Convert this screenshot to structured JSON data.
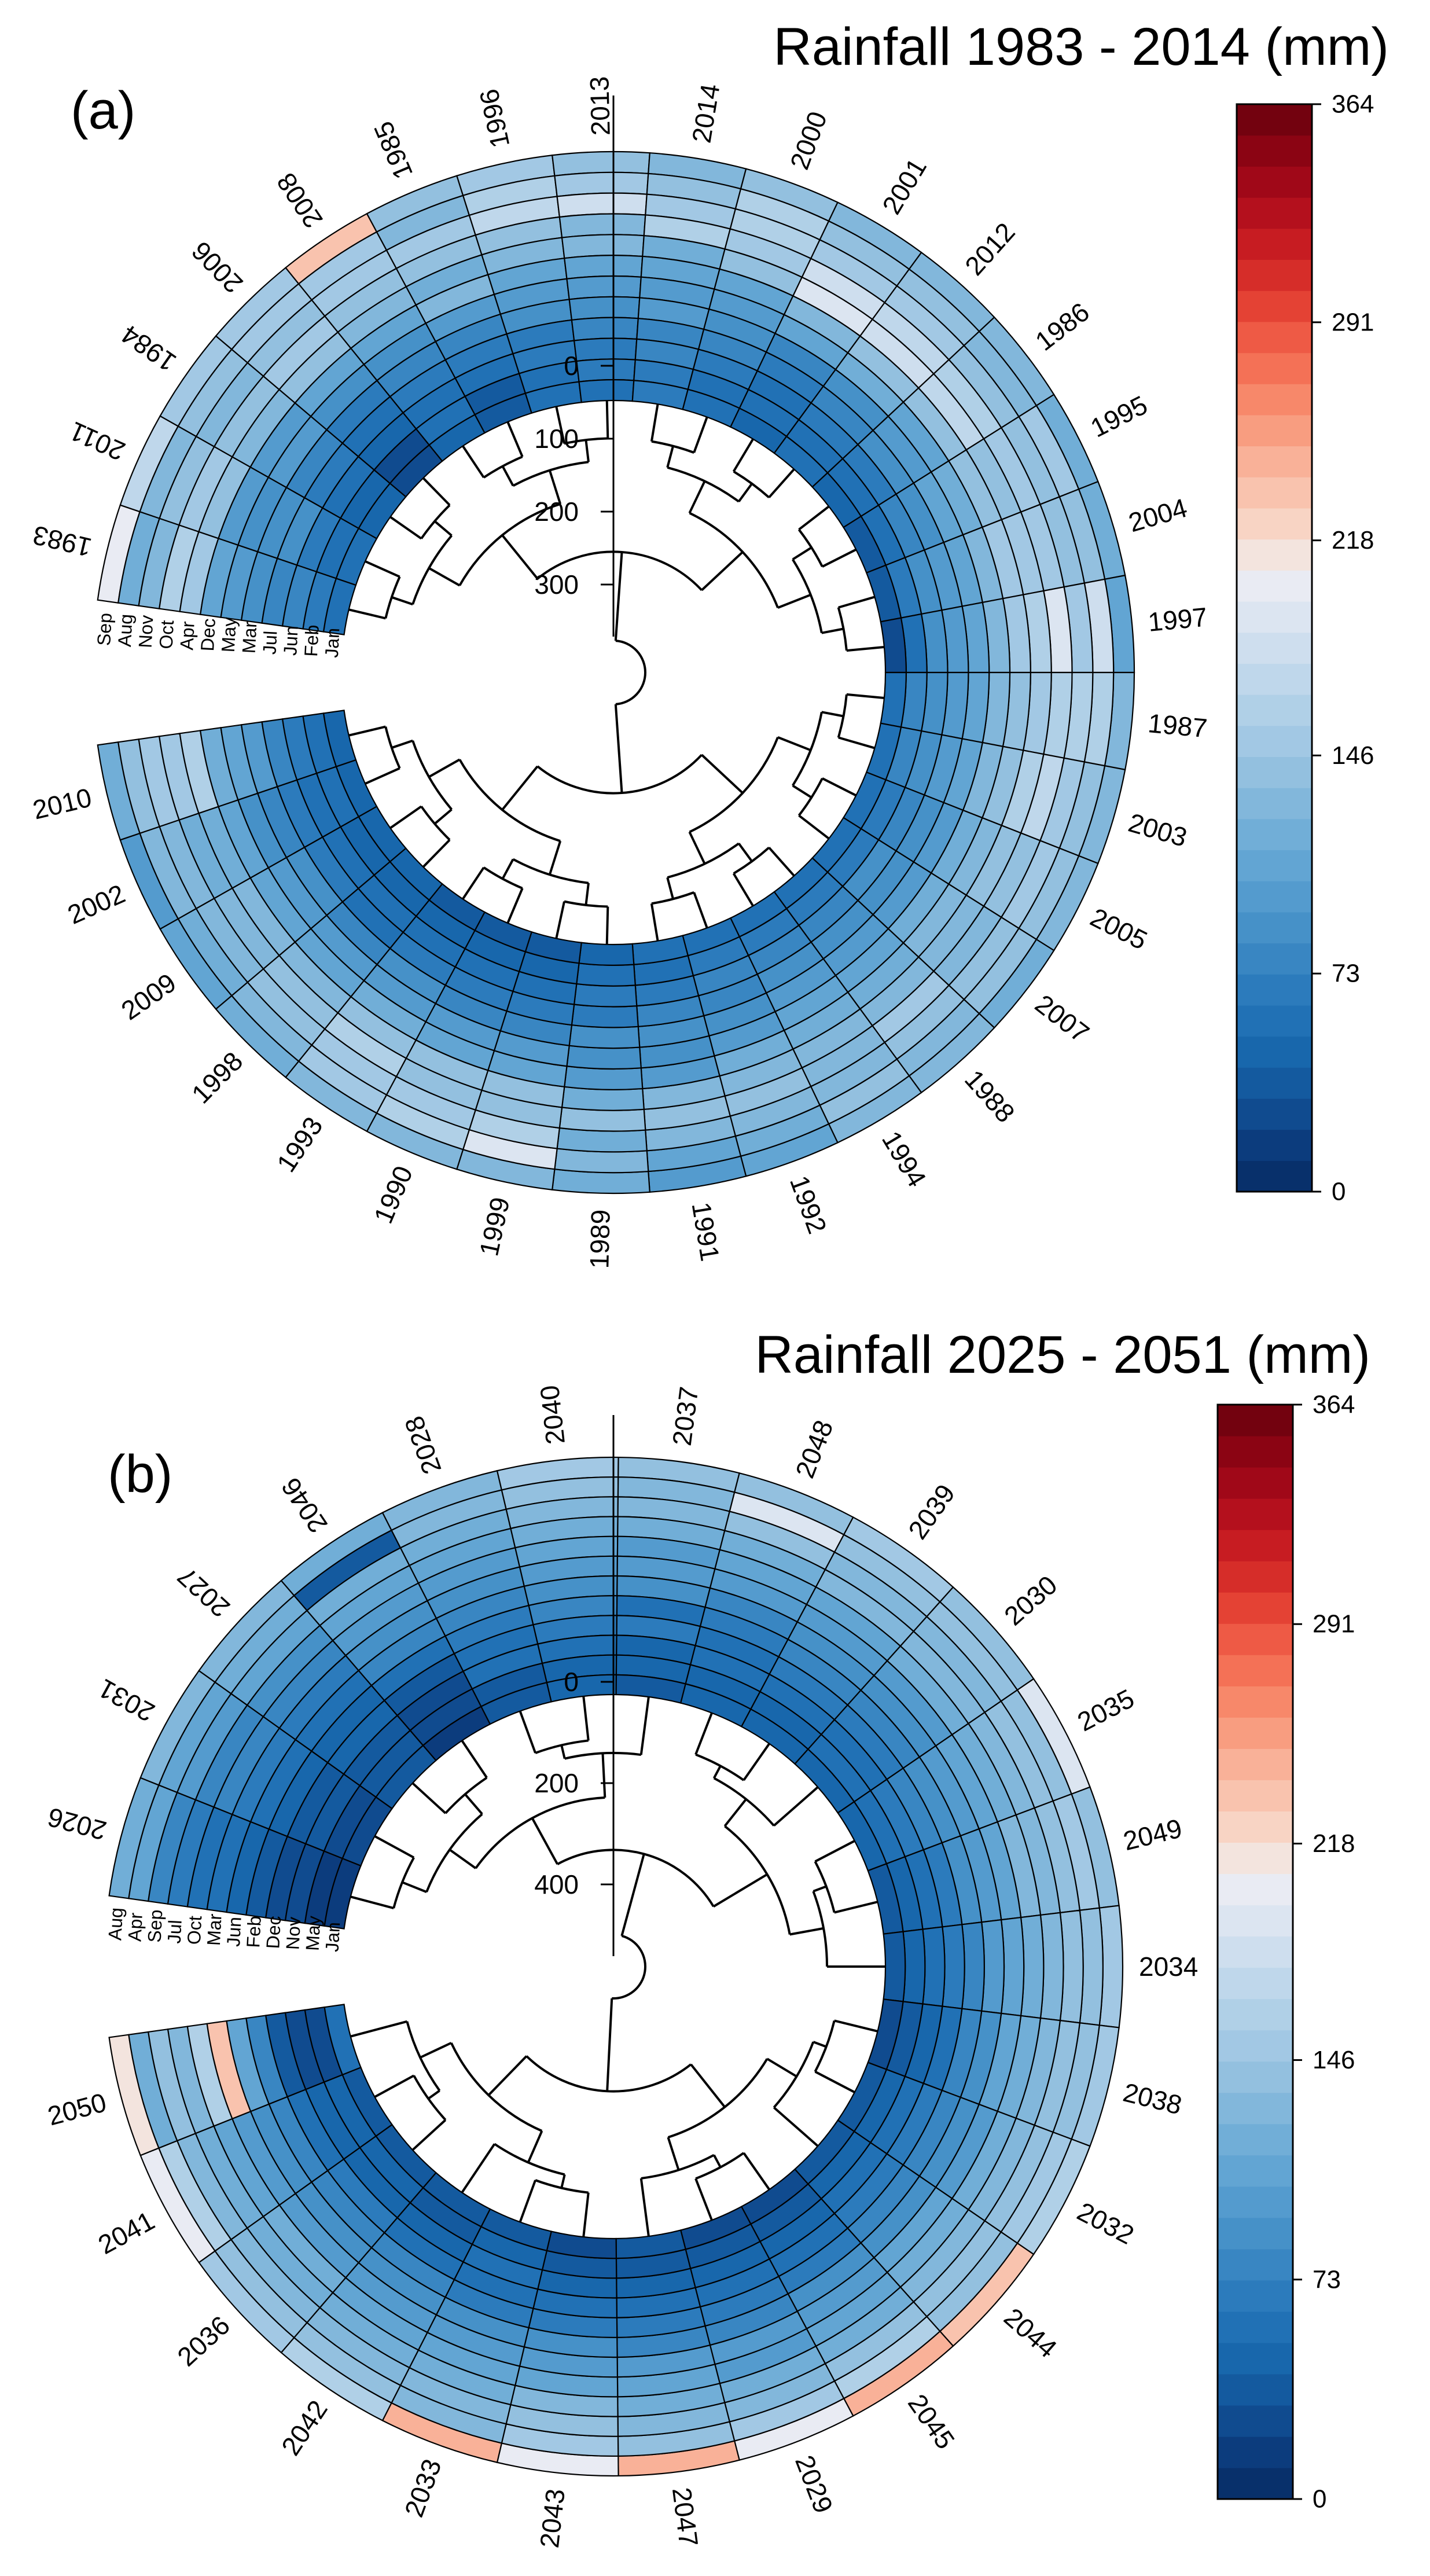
{
  "chart_data": [
    {
      "panel": "(a)",
      "type": "heatmap",
      "title": "Rainfall 1983 - 2014 (mm)",
      "style": "circular heatmap with hierarchical clustering dendrogram",
      "months": [
        "Sep",
        "Aug",
        "Nov",
        "Oct",
        "Apr",
        "Dec",
        "May",
        "Mar",
        "Jul",
        "Jun",
        "Feb",
        "Jan"
      ],
      "years": [
        "1983",
        "2011",
        "1984",
        "2006",
        "2008",
        "1985",
        "1996",
        "2013",
        "2014",
        "2000",
        "2001",
        "2012",
        "1986",
        "1995",
        "2004",
        "1997",
        "1987",
        "2003",
        "2005",
        "2007",
        "1988",
        "1994",
        "1992",
        "1991",
        "1989",
        "1999",
        "1990",
        "1993",
        "1998",
        "2009",
        "2002",
        "2010"
      ],
      "values": [
        [
          200,
          120,
          130,
          160,
          150,
          110,
          100,
          90,
          80,
          75,
          70,
          60
        ],
        [
          170,
          130,
          140,
          150,
          140,
          100,
          90,
          85,
          85,
          70,
          60,
          55
        ],
        [
          150,
          140,
          135,
          145,
          130,
          95,
          95,
          80,
          70,
          60,
          50,
          45
        ],
        [
          150,
          150,
          140,
          150,
          140,
          110,
          90,
          70,
          60,
          50,
          30,
          25
        ],
        [
          230,
          150,
          150,
          140,
          135,
          110,
          90,
          80,
          70,
          60,
          55,
          50
        ],
        [
          140,
          135,
          150,
          140,
          120,
          130,
          100,
          80,
          70,
          60,
          40,
          35
        ],
        [
          155,
          160,
          175,
          140,
          135,
          110,
          95,
          90,
          70,
          65,
          60,
          55
        ],
        [
          140,
          150,
          180,
          135,
          130,
          105,
          100,
          85,
          80,
          70,
          65,
          60
        ],
        [
          125,
          140,
          150,
          160,
          120,
          110,
          100,
          95,
          80,
          75,
          70,
          65
        ],
        [
          140,
          160,
          165,
          150,
          140,
          110,
          95,
          90,
          75,
          65,
          60,
          55
        ],
        [
          135,
          140,
          150,
          185,
          190,
          130,
          110,
          80,
          70,
          60,
          55,
          50
        ],
        [
          130,
          140,
          150,
          175,
          185,
          140,
          120,
          90,
          80,
          70,
          60,
          55
        ],
        [
          130,
          135,
          145,
          160,
          175,
          140,
          110,
          100,
          85,
          70,
          55,
          45
        ],
        [
          120,
          150,
          145,
          150,
          140,
          140,
          115,
          105,
          90,
          80,
          60,
          35
        ],
        [
          115,
          140,
          140,
          150,
          150,
          150,
          125,
          105,
          95,
          90,
          70,
          40
        ],
        [
          110,
          185,
          150,
          190,
          160,
          150,
          125,
          105,
          95,
          85,
          60,
          30
        ],
        [
          130,
          160,
          160,
          160,
          150,
          140,
          130,
          110,
          95,
          90,
          75,
          55
        ],
        [
          125,
          145,
          150,
          175,
          165,
          140,
          125,
          110,
          100,
          85,
          75,
          60
        ],
        [
          125,
          140,
          155,
          140,
          140,
          130,
          120,
          100,
          90,
          80,
          70,
          60
        ],
        [
          120,
          140,
          140,
          135,
          130,
          125,
          120,
          100,
          90,
          85,
          70,
          60
        ],
        [
          130,
          135,
          145,
          150,
          130,
          120,
          110,
          100,
          90,
          80,
          70,
          60
        ],
        [
          125,
          140,
          135,
          125,
          130,
          120,
          105,
          100,
          85,
          75,
          65,
          60
        ],
        [
          110,
          120,
          130,
          140,
          125,
          115,
          100,
          90,
          80,
          75,
          65,
          55
        ],
        [
          95,
          110,
          135,
          140,
          130,
          100,
          85,
          90,
          80,
          70,
          60,
          55
        ],
        [
          120,
          130,
          120,
          140,
          120,
          100,
          90,
          85,
          70,
          70,
          55,
          45
        ],
        [
          125,
          190,
          165,
          145,
          140,
          110,
          95,
          80,
          70,
          60,
          50,
          35
        ],
        [
          130,
          165,
          150,
          140,
          140,
          110,
          95,
          80,
          65,
          55,
          50,
          40
        ],
        [
          125,
          150,
          150,
          165,
          145,
          115,
          100,
          85,
          70,
          55,
          45,
          40
        ],
        [
          115,
          135,
          140,
          140,
          130,
          110,
          95,
          80,
          60,
          55,
          50,
          45
        ],
        [
          105,
          120,
          130,
          135,
          125,
          110,
          95,
          85,
          70,
          60,
          50,
          45
        ],
        [
          100,
          130,
          135,
          120,
          115,
          105,
          90,
          80,
          70,
          60,
          55,
          50
        ],
        [
          115,
          140,
          150,
          155,
          160,
          120,
          110,
          95,
          80,
          70,
          60,
          50
        ]
      ],
      "value_range": [
        0,
        364
      ],
      "colorbar_ticks": [
        "0",
        "73",
        "146",
        "218",
        "291",
        "364"
      ],
      "dendrogram_axis_ticks": [
        "0",
        "100",
        "200",
        "300"
      ]
    },
    {
      "panel": "(b)",
      "type": "heatmap",
      "title": "Rainfall 2025 - 2051 (mm)",
      "style": "circular heatmap with hierarchical clustering dendrogram",
      "months": [
        "Aug",
        "Apr",
        "Sep",
        "Jul",
        "Oct",
        "Mar",
        "Jun",
        "Feb",
        "Dec",
        "Nov",
        "May",
        "Jan"
      ],
      "years": [
        "2026",
        "2031",
        "2027",
        "2046",
        "2028",
        "2040",
        "2037",
        "2048",
        "2039",
        "2030",
        "2035",
        "2049",
        "2034",
        "2038",
        "2032",
        "2044",
        "2045",
        "2029",
        "2047",
        "2043",
        "2033",
        "2042",
        "2036",
        "2041",
        "2050"
      ],
      "values": [
        [
          115,
          105,
          80,
          70,
          60,
          55,
          45,
          40,
          30,
          25,
          20,
          20
        ],
        [
          125,
          110,
          100,
          80,
          75,
          65,
          55,
          45,
          40,
          35,
          30,
          30
        ],
        [
          130,
          115,
          105,
          90,
          80,
          70,
          60,
          50,
          45,
          40,
          40,
          35
        ],
        [
          120,
          40,
          120,
          110,
          100,
          90,
          80,
          60,
          40,
          30,
          25,
          20
        ],
        [
          135,
          130,
          120,
          110,
          100,
          90,
          80,
          70,
          60,
          55,
          40,
          40
        ],
        [
          155,
          140,
          130,
          120,
          110,
          100,
          90,
          80,
          70,
          60,
          50,
          45
        ],
        [
          140,
          130,
          125,
          115,
          100,
          95,
          85,
          60,
          70,
          50,
          45,
          40
        ],
        [
          140,
          190,
          140,
          120,
          105,
          95,
          80,
          70,
          60,
          55,
          50,
          45
        ],
        [
          150,
          140,
          135,
          125,
          110,
          100,
          85,
          75,
          65,
          60,
          50,
          45
        ],
        [
          145,
          140,
          135,
          125,
          115,
          100,
          90,
          80,
          70,
          60,
          55,
          50
        ],
        [
          190,
          145,
          140,
          130,
          120,
          105,
          95,
          85,
          75,
          65,
          55,
          50
        ],
        [
          140,
          150,
          145,
          135,
          125,
          110,
          95,
          85,
          70,
          60,
          50,
          40
        ],
        [
          150,
          145,
          140,
          130,
          120,
          105,
          95,
          80,
          65,
          55,
          45,
          35
        ],
        [
          155,
          145,
          140,
          130,
          120,
          105,
          90,
          75,
          60,
          50,
          40,
          30
        ],
        [
          160,
          150,
          140,
          130,
          115,
          100,
          90,
          75,
          65,
          55,
          45,
          35
        ],
        [
          230,
          145,
          140,
          130,
          120,
          105,
          90,
          80,
          65,
          55,
          45,
          35
        ],
        [
          240,
          160,
          140,
          120,
          110,
          100,
          85,
          70,
          60,
          45,
          35,
          30
        ],
        [
          200,
          150,
          130,
          120,
          100,
          95,
          80,
          65,
          55,
          45,
          35,
          25
        ],
        [
          240,
          140,
          130,
          120,
          110,
          95,
          80,
          70,
          55,
          45,
          40,
          35
        ],
        [
          200,
          150,
          140,
          125,
          110,
          100,
          85,
          70,
          60,
          50,
          40,
          30
        ],
        [
          240,
          130,
          135,
          120,
          110,
          100,
          90,
          70,
          60,
          55,
          45,
          40
        ],
        [
          165,
          140,
          130,
          120,
          110,
          100,
          90,
          75,
          60,
          50,
          40,
          35
        ],
        [
          150,
          140,
          130,
          120,
          115,
          100,
          90,
          75,
          65,
          50,
          45,
          40
        ],
        [
          200,
          160,
          130,
          120,
          110,
          100,
          90,
          75,
          60,
          50,
          45,
          40
        ],
        [
          210,
          120,
          140,
          130,
          160,
          230,
          110,
          80,
          40,
          30,
          25,
          60
        ]
      ],
      "value_range": [
        0,
        364
      ],
      "colorbar_ticks": [
        "0",
        "73",
        "146",
        "218",
        "291",
        "364"
      ],
      "dendrogram_axis_ticks": [
        "0",
        "200",
        "400"
      ]
    }
  ]
}
